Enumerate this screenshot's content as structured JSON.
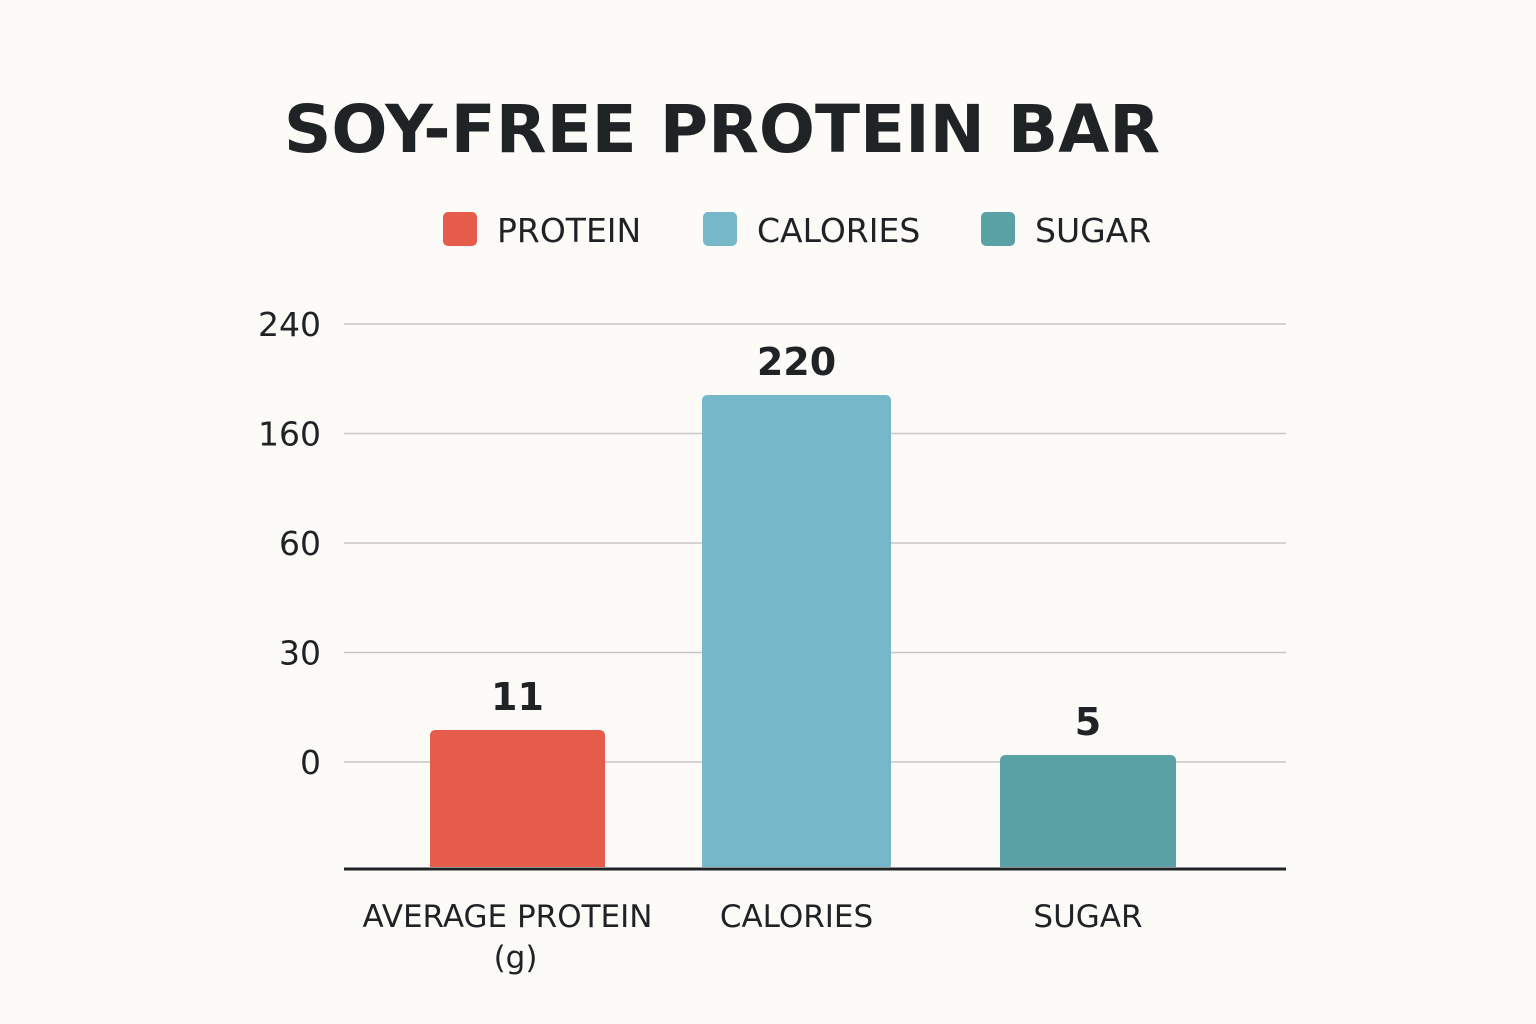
{
  "chart_data": {
    "type": "bar",
    "title": "SOY-FREE PROTEIN BAR",
    "categories": [
      "AVERAGE PROTEIN\n(g)",
      "CALORIES",
      "SUGAR"
    ],
    "values": [
      11,
      220,
      5
    ],
    "series": [
      {
        "name": "PROTEIN",
        "color": "#e55c4a"
      },
      {
        "name": "CALORIES",
        "color": "#76b8ca"
      },
      {
        "name": "SUGAR",
        "color": "#5aa2a6"
      }
    ],
    "y_ticks": [
      0,
      30,
      60,
      160,
      240
    ],
    "xlabel": "",
    "ylabel": "",
    "grid": true,
    "legend_position": "top"
  }
}
